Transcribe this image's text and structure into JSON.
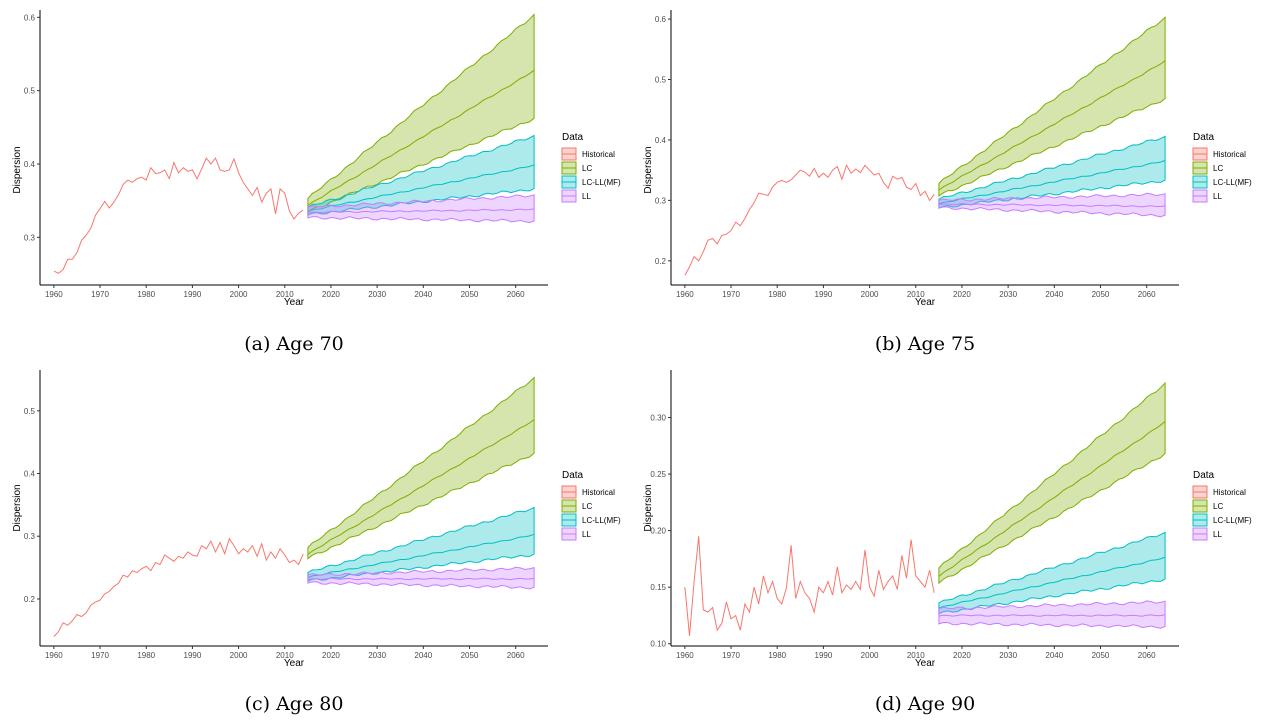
{
  "colors": {
    "Historical": "#F8766D",
    "LC": "#7CAE00",
    "LC-LL(MF)": "#00BFC4",
    "LL": "#C77CFF"
  },
  "chart_data": [
    {
      "type": "line",
      "caption": "(a) Age 70",
      "xlabel": "Year",
      "ylabel": "Dispersion",
      "xlim": [
        1957,
        2067
      ],
      "ylim": [
        0.235,
        0.61
      ],
      "xticks": [
        1960,
        1970,
        1980,
        1990,
        2000,
        2010,
        2020,
        2030,
        2040,
        2050,
        2060
      ],
      "yticks": [
        0.3,
        0.4,
        0.5,
        0.6
      ],
      "legend": {
        "title": "Data",
        "position": "right",
        "entries": [
          "Historical",
          "LC",
          "LC-LL(MF)",
          "LL"
        ]
      },
      "historical": {
        "name": "Historical",
        "x": [
          1960,
          1961,
          1962,
          1963,
          1964,
          1965,
          1966,
          1967,
          1968,
          1969,
          1970,
          1971,
          1972,
          1973,
          1974,
          1975,
          1976,
          1977,
          1978,
          1979,
          1980,
          1981,
          1982,
          1983,
          1984,
          1985,
          1986,
          1987,
          1988,
          1989,
          1990,
          1991,
          1992,
          1993,
          1994,
          1995,
          1996,
          1997,
          1998,
          1999,
          2000,
          2001,
          2002,
          2003,
          2004,
          2005,
          2006,
          2007,
          2008,
          2009,
          2010,
          2011,
          2012,
          2013,
          2014
        ],
        "y": [
          0.254,
          0.251,
          0.256,
          0.27,
          0.27,
          0.279,
          0.296,
          0.303,
          0.312,
          0.33,
          0.339,
          0.349,
          0.34,
          0.348,
          0.358,
          0.372,
          0.378,
          0.375,
          0.38,
          0.382,
          0.378,
          0.395,
          0.387,
          0.388,
          0.392,
          0.38,
          0.402,
          0.388,
          0.395,
          0.39,
          0.392,
          0.38,
          0.393,
          0.408,
          0.4,
          0.408,
          0.392,
          0.39,
          0.392,
          0.407,
          0.388,
          0.375,
          0.366,
          0.357,
          0.368,
          0.348,
          0.36,
          0.366,
          0.332,
          0.366,
          0.36,
          0.336,
          0.325,
          0.333,
          0.337
        ]
      },
      "forecasts": [
        {
          "name": "LC",
          "x": [
            2015,
            2064
          ],
          "median": [
            0.344,
            0.527
          ],
          "lower": [
            0.335,
            0.462
          ],
          "upper": [
            0.353,
            0.603
          ]
        },
        {
          "name": "LC-LL(MF)",
          "x": [
            2015,
            2064
          ],
          "median": [
            0.336,
            0.398
          ],
          "lower": [
            0.331,
            0.366
          ],
          "upper": [
            0.341,
            0.438
          ]
        },
        {
          "name": "LL",
          "x": [
            2015,
            2064
          ],
          "median": [
            0.334,
            0.338
          ],
          "lower": [
            0.327,
            0.322
          ],
          "upper": [
            0.341,
            0.357
          ]
        }
      ]
    },
    {
      "type": "line",
      "caption": "(b) Age 75",
      "xlabel": "Year",
      "ylabel": "Dispersion",
      "xlim": [
        1957,
        2067
      ],
      "ylim": [
        0.16,
        0.615
      ],
      "xticks": [
        1960,
        1970,
        1980,
        1990,
        2000,
        2010,
        2020,
        2030,
        2040,
        2050,
        2060
      ],
      "yticks": [
        0.2,
        0.3,
        0.4,
        0.5,
        0.6
      ],
      "legend": {
        "title": "Data",
        "position": "right",
        "entries": [
          "Historical",
          "LC",
          "LC-LL(MF)",
          "LL"
        ]
      },
      "historical": {
        "name": "Historical",
        "x": [
          1960,
          1961,
          1962,
          1963,
          1964,
          1965,
          1966,
          1967,
          1968,
          1969,
          1970,
          1971,
          1972,
          1973,
          1974,
          1975,
          1976,
          1977,
          1978,
          1979,
          1980,
          1981,
          1982,
          1983,
          1984,
          1985,
          1986,
          1987,
          1988,
          1989,
          1990,
          1991,
          1992,
          1993,
          1994,
          1995,
          1996,
          1997,
          1998,
          1999,
          2000,
          2001,
          2002,
          2003,
          2004,
          2005,
          2006,
          2007,
          2008,
          2009,
          2010,
          2011,
          2012,
          2013,
          2014
        ],
        "y": [
          0.176,
          0.19,
          0.207,
          0.2,
          0.215,
          0.234,
          0.237,
          0.228,
          0.242,
          0.244,
          0.25,
          0.264,
          0.258,
          0.27,
          0.285,
          0.296,
          0.312,
          0.31,
          0.308,
          0.322,
          0.33,
          0.333,
          0.33,
          0.334,
          0.342,
          0.35,
          0.347,
          0.34,
          0.353,
          0.338,
          0.345,
          0.338,
          0.35,
          0.356,
          0.335,
          0.358,
          0.345,
          0.352,
          0.346,
          0.358,
          0.35,
          0.342,
          0.345,
          0.33,
          0.32,
          0.34,
          0.335,
          0.338,
          0.322,
          0.318,
          0.328,
          0.308,
          0.315,
          0.3,
          0.31
        ]
      },
      "forecasts": [
        {
          "name": "LC",
          "x": [
            2015,
            2064
          ],
          "median": [
            0.318,
            0.53
          ],
          "lower": [
            0.308,
            0.468
          ],
          "upper": [
            0.328,
            0.602
          ]
        },
        {
          "name": "LC-LL(MF)",
          "x": [
            2015,
            2064
          ],
          "median": [
            0.295,
            0.365
          ],
          "lower": [
            0.288,
            0.333
          ],
          "upper": [
            0.302,
            0.405
          ]
        },
        {
          "name": "LL",
          "x": [
            2015,
            2064
          ],
          "median": [
            0.294,
            0.29
          ],
          "lower": [
            0.288,
            0.275
          ],
          "upper": [
            0.3,
            0.31
          ]
        }
      ]
    },
    {
      "type": "line",
      "caption": "(c) Age 80",
      "xlabel": "Year",
      "ylabel": "Dispersion",
      "xlim": [
        1957,
        2067
      ],
      "ylim": [
        0.125,
        0.565
      ],
      "xticks": [
        1960,
        1970,
        1980,
        1990,
        2000,
        2010,
        2020,
        2030,
        2040,
        2050,
        2060
      ],
      "yticks": [
        0.2,
        0.3,
        0.4,
        0.5
      ],
      "legend": {
        "title": "Data",
        "position": "right",
        "entries": [
          "Historical",
          "LC",
          "LC-LL(MF)",
          "LL"
        ]
      },
      "historical": {
        "name": "Historical",
        "x": [
          1960,
          1961,
          1962,
          1963,
          1964,
          1965,
          1966,
          1967,
          1968,
          1969,
          1970,
          1971,
          1972,
          1973,
          1974,
          1975,
          1976,
          1977,
          1978,
          1979,
          1980,
          1981,
          1982,
          1983,
          1984,
          1985,
          1986,
          1987,
          1988,
          1989,
          1990,
          1991,
          1992,
          1993,
          1994,
          1995,
          1996,
          1997,
          1998,
          1999,
          2000,
          2001,
          2002,
          2003,
          2004,
          2005,
          2006,
          2007,
          2008,
          2009,
          2010,
          2011,
          2012,
          2013,
          2014
        ],
        "y": [
          0.14,
          0.148,
          0.162,
          0.158,
          0.165,
          0.175,
          0.172,
          0.178,
          0.19,
          0.195,
          0.198,
          0.208,
          0.212,
          0.22,
          0.225,
          0.238,
          0.235,
          0.245,
          0.242,
          0.248,
          0.252,
          0.245,
          0.258,
          0.255,
          0.27,
          0.265,
          0.26,
          0.268,
          0.265,
          0.275,
          0.27,
          0.268,
          0.285,
          0.28,
          0.292,
          0.275,
          0.29,
          0.272,
          0.296,
          0.285,
          0.272,
          0.28,
          0.275,
          0.285,
          0.268,
          0.288,
          0.262,
          0.275,
          0.265,
          0.28,
          0.27,
          0.258,
          0.262,
          0.255,
          0.272
        ]
      },
      "forecasts": [
        {
          "name": "LC",
          "x": [
            2015,
            2064
          ],
          "median": [
            0.272,
            0.485
          ],
          "lower": [
            0.265,
            0.432
          ],
          "upper": [
            0.282,
            0.552
          ]
        },
        {
          "name": "LC-LL(MF)",
          "x": [
            2015,
            2064
          ],
          "median": [
            0.235,
            0.302
          ],
          "lower": [
            0.229,
            0.271
          ],
          "upper": [
            0.242,
            0.345
          ]
        },
        {
          "name": "LL",
          "x": [
            2015,
            2064
          ],
          "median": [
            0.232,
            0.232
          ],
          "lower": [
            0.226,
            0.218
          ],
          "upper": [
            0.238,
            0.249
          ]
        }
      ]
    },
    {
      "type": "line",
      "caption": "(d) Age 90",
      "xlabel": "Year",
      "ylabel": "Dispersion",
      "xlim": [
        1957,
        2067
      ],
      "ylim": [
        0.098,
        0.342
      ],
      "xticks": [
        1960,
        1970,
        1980,
        1990,
        2000,
        2010,
        2020,
        2030,
        2040,
        2050,
        2060
      ],
      "yticks": [
        0.1,
        0.15,
        0.2,
        0.25,
        0.3
      ],
      "ytickLabels": [
        "0.10",
        "0.15",
        "0.20",
        "0.25",
        "0.30"
      ],
      "legend": {
        "title": "Data",
        "position": "right",
        "entries": [
          "Historical",
          "LC",
          "LC-LL(MF)",
          "LL"
        ]
      },
      "historical": {
        "name": "Historical",
        "x": [
          1960,
          1961,
          1962,
          1963,
          1964,
          1965,
          1966,
          1967,
          1968,
          1969,
          1970,
          1971,
          1972,
          1973,
          1974,
          1975,
          1976,
          1977,
          1978,
          1979,
          1980,
          1981,
          1982,
          1983,
          1984,
          1985,
          1986,
          1987,
          1988,
          1989,
          1990,
          1991,
          1992,
          1993,
          1994,
          1995,
          1996,
          1997,
          1998,
          1999,
          2000,
          2001,
          2002,
          2003,
          2004,
          2005,
          2006,
          2007,
          2008,
          2009,
          2010,
          2011,
          2012,
          2013,
          2014
        ],
        "y": [
          0.15,
          0.107,
          0.155,
          0.195,
          0.13,
          0.128,
          0.132,
          0.112,
          0.118,
          0.137,
          0.122,
          0.125,
          0.112,
          0.135,
          0.128,
          0.15,
          0.135,
          0.16,
          0.145,
          0.155,
          0.14,
          0.135,
          0.15,
          0.187,
          0.14,
          0.155,
          0.145,
          0.14,
          0.128,
          0.15,
          0.145,
          0.155,
          0.143,
          0.168,
          0.145,
          0.152,
          0.148,
          0.155,
          0.148,
          0.183,
          0.15,
          0.142,
          0.165,
          0.148,
          0.155,
          0.16,
          0.148,
          0.178,
          0.158,
          0.192,
          0.16,
          0.155,
          0.15,
          0.165,
          0.145
        ]
      },
      "forecasts": [
        {
          "name": "LC",
          "x": [
            2015,
            2064
          ],
          "median": [
            0.16,
            0.296
          ],
          "lower": [
            0.154,
            0.268
          ],
          "upper": [
            0.167,
            0.33
          ]
        },
        {
          "name": "LC-LL(MF)",
          "x": [
            2015,
            2064
          ],
          "median": [
            0.132,
            0.176
          ],
          "lower": [
            0.127,
            0.157
          ],
          "upper": [
            0.136,
            0.198
          ]
        },
        {
          "name": "LL",
          "x": [
            2015,
            2064
          ],
          "median": [
            0.125,
            0.125
          ],
          "lower": [
            0.118,
            0.115
          ],
          "upper": [
            0.131,
            0.137
          ]
        }
      ]
    }
  ]
}
